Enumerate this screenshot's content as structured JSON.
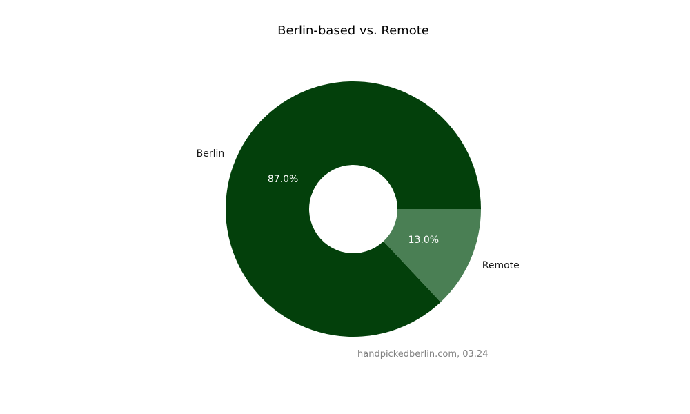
{
  "chart_data": {
    "type": "pie",
    "title": "Berlin-based vs. Remote",
    "donut": true,
    "slices": [
      {
        "label": "Berlin",
        "value": 87.0,
        "pct_label": "87.0%",
        "color": "#03400b"
      },
      {
        "label": "Remote",
        "value": 13.0,
        "pct_label": "13.0%",
        "color": "#4a7f54"
      }
    ],
    "source_note": "handpickedberlin.com, 03.24",
    "legend": "none"
  }
}
